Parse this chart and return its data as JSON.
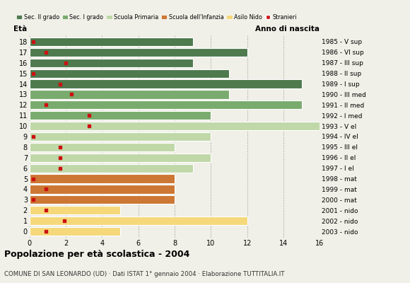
{
  "ages": [
    18,
    17,
    16,
    15,
    14,
    13,
    12,
    11,
    10,
    9,
    8,
    7,
    6,
    5,
    4,
    3,
    2,
    1,
    0
  ],
  "bar_values": [
    9,
    12,
    9,
    11,
    15,
    11,
    15,
    10,
    16,
    10,
    8,
    10,
    9,
    8,
    8,
    8,
    5,
    12,
    5
  ],
  "bar_colors": [
    "#4e7a4e",
    "#4e7a4e",
    "#4e7a4e",
    "#4e7a4e",
    "#4e7a4e",
    "#7aab6e",
    "#7aab6e",
    "#7aab6e",
    "#c0d8a8",
    "#c0d8a8",
    "#c0d8a8",
    "#c0d8a8",
    "#c0d8a8",
    "#cc7733",
    "#cc7733",
    "#cc7733",
    "#f5d87a",
    "#f5d87a",
    "#f5d87a"
  ],
  "stranieri_x": [
    0.2,
    0.9,
    2.0,
    0.2,
    1.7,
    2.3,
    0.9,
    3.3,
    3.3,
    0.2,
    1.7,
    1.7,
    1.7,
    0.2,
    0.9,
    0.2,
    0.9,
    1.9,
    0.9
  ],
  "right_labels": [
    "1985 - V sup",
    "1986 - VI sup",
    "1987 - III sup",
    "1988 - II sup",
    "1989 - I sup",
    "1990 - III med",
    "1991 - II med",
    "1992 - I med",
    "1993 - V el",
    "1994 - IV el",
    "1995 - III el",
    "1996 - II el",
    "1997 - I el",
    "1998 - mat",
    "1999 - mat",
    "2000 - mat",
    "2001 - nido",
    "2002 - nido",
    "2003 - nido"
  ],
  "legend_labels": [
    "Sec. II grado",
    "Sec. I grado",
    "Scuola Primaria",
    "Scuola dell'Infanzia",
    "Asilo Nido",
    "Stranieri"
  ],
  "legend_colors": [
    "#4e7a4e",
    "#7aab6e",
    "#c0d8a8",
    "#cc7733",
    "#f5d87a",
    "#cc1111"
  ],
  "title": "Popolazione per età scolastica - 2004",
  "subtitle": "COMUNE DI SAN LEONARDO (UD) · Dati ISTAT 1° gennaio 2004 · Elaborazione TUTTITALIA.IT",
  "xlabel_left": "Età",
  "xlabel_right": "Anno di nascita",
  "xlim": [
    0,
    16
  ],
  "xticks": [
    0,
    2,
    4,
    6,
    8,
    10,
    12,
    14,
    16
  ],
  "bg_color": "#f0f0e8",
  "bar_height": 0.82
}
